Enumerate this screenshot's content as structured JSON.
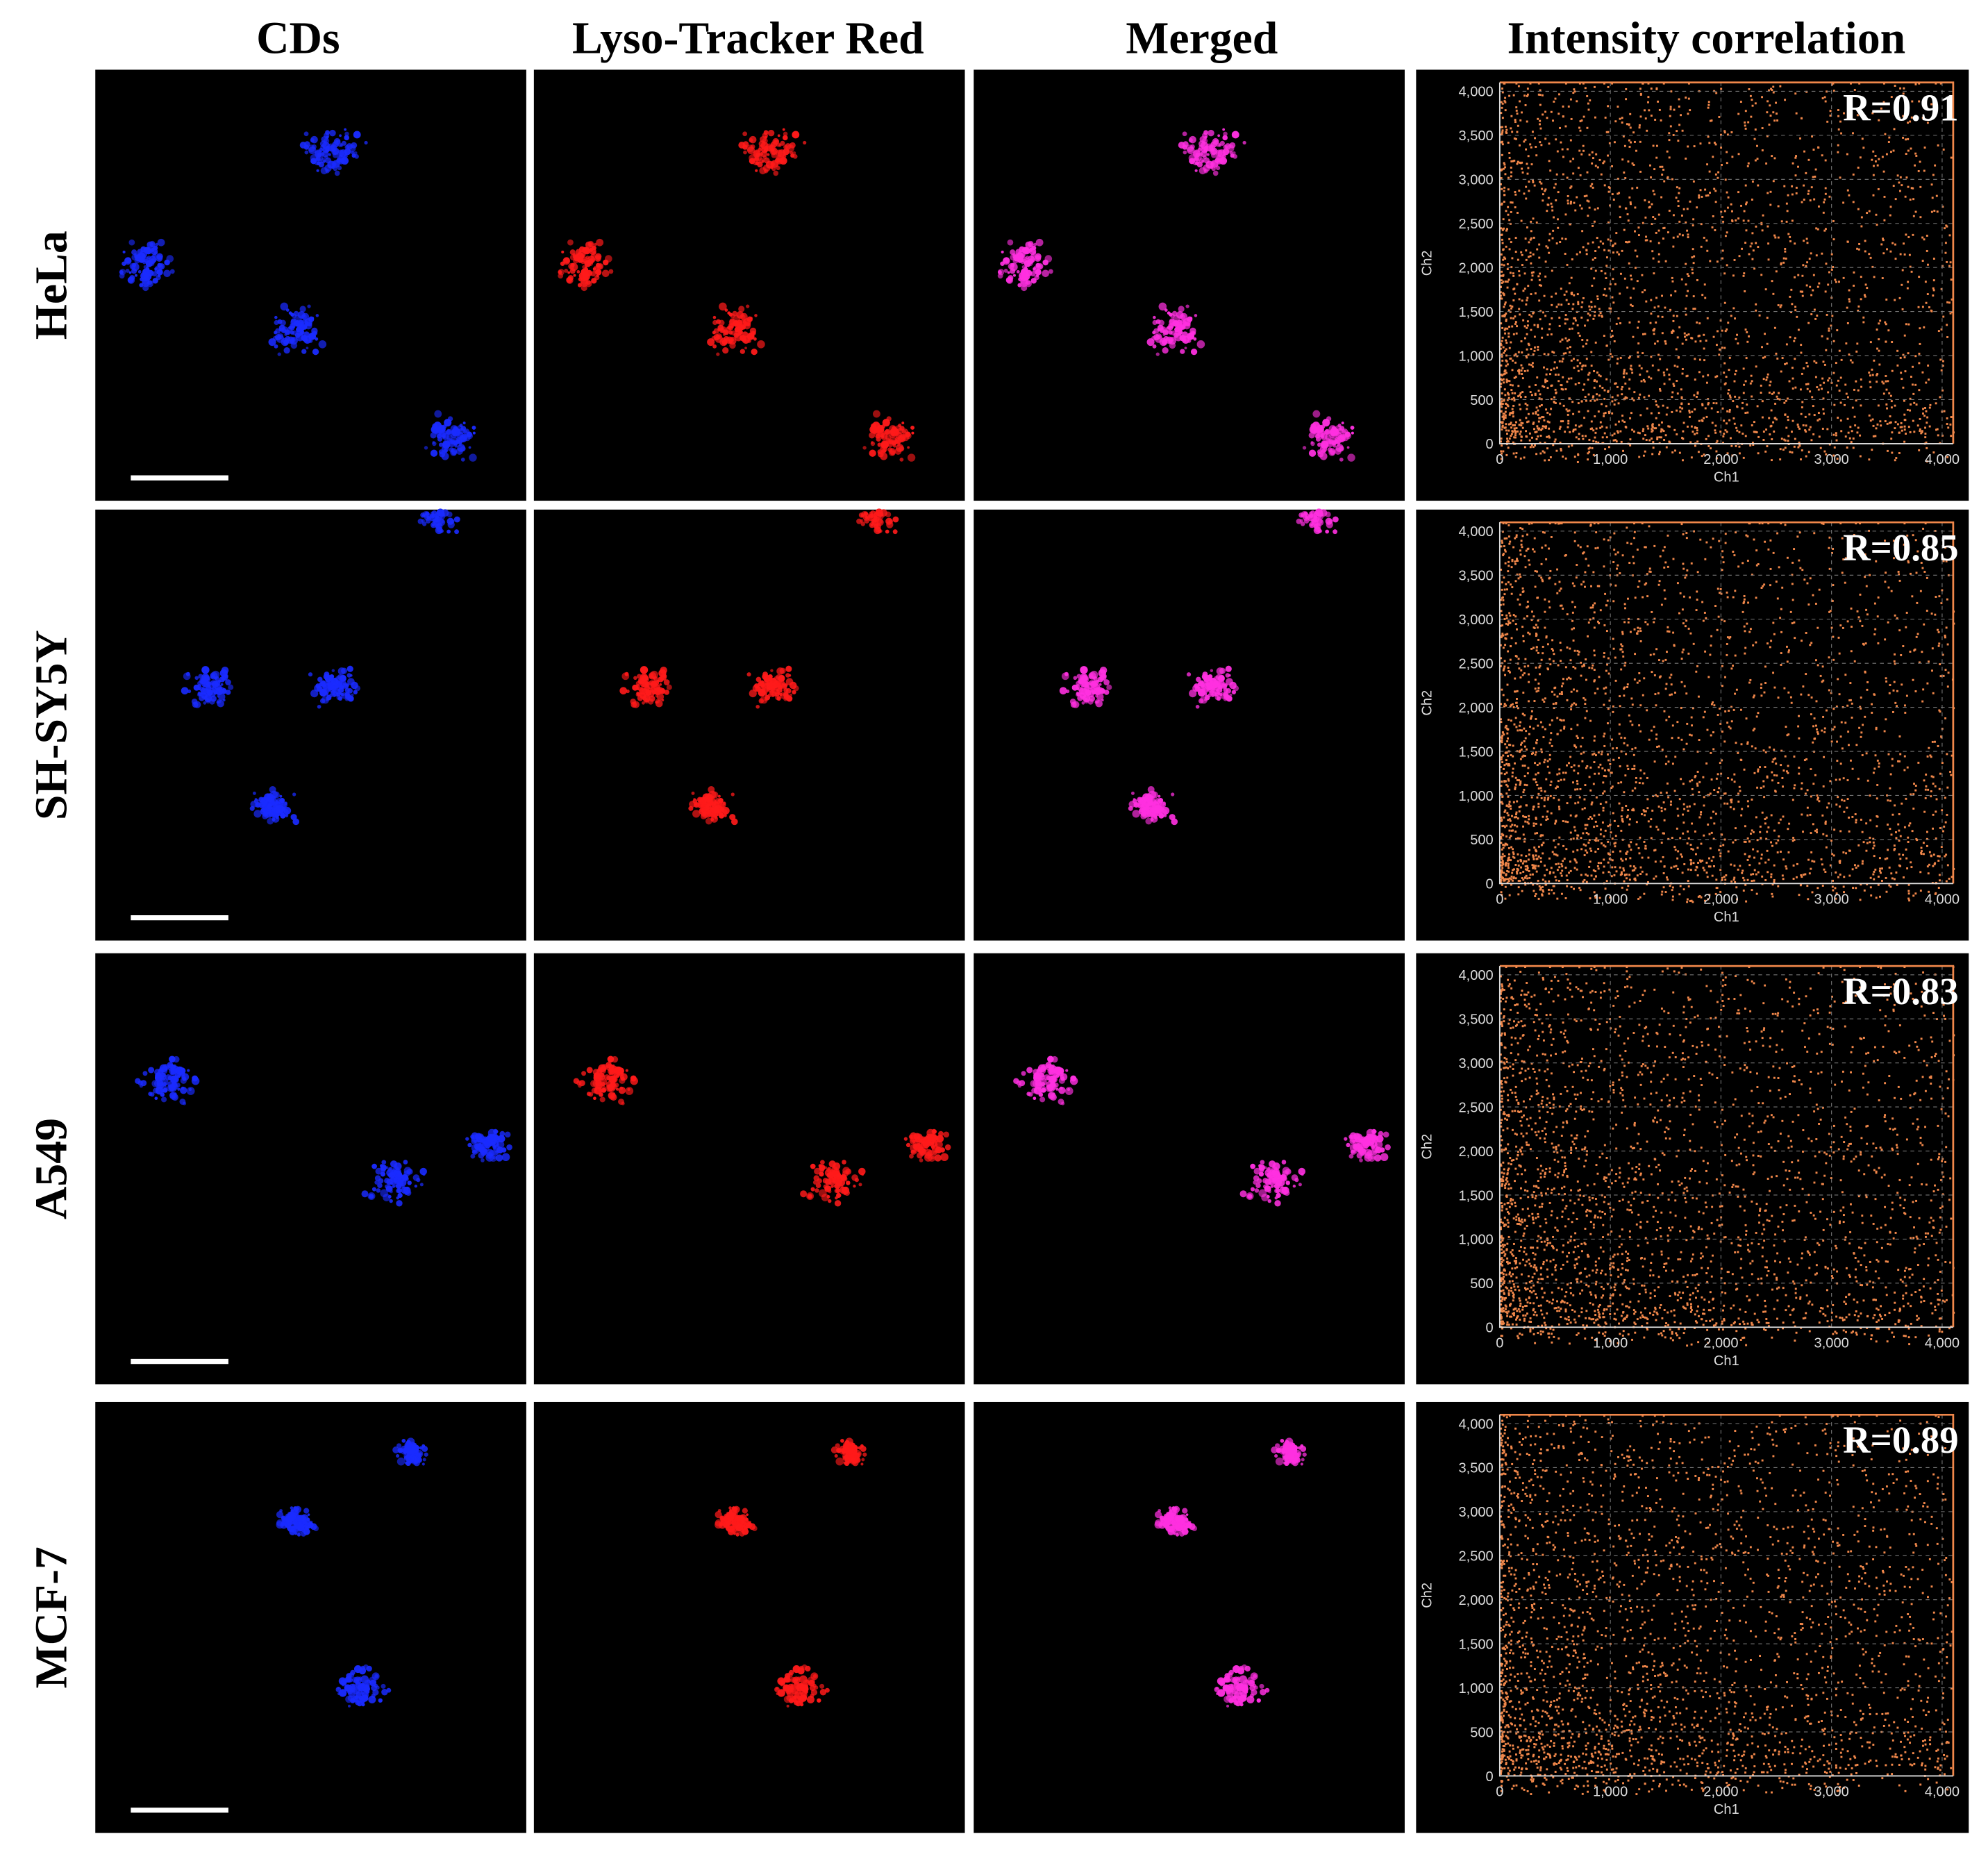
{
  "columns": [
    "CDs",
    "Lyso-Tracker Red",
    "Merged",
    "Intensity correlation"
  ],
  "rows": [
    {
      "label": "HeLa",
      "correlation": "R=0.91"
    },
    {
      "label": "SH-SY5Y",
      "correlation": "R=0.85"
    },
    {
      "label": "A549",
      "correlation": "R=0.83"
    },
    {
      "label": "MCF-7",
      "correlation": "R=0.89"
    }
  ],
  "correlation_plot": {
    "xlabel": "Ch1",
    "ylabel": "Ch2",
    "xlim": [
      0,
      4100
    ],
    "ylim": [
      0,
      4100
    ],
    "xticks": [
      0,
      {
        "value": 1000,
        "label": "1,000"
      },
      {
        "value": 2000,
        "label": "2,000"
      },
      {
        "value": 3000,
        "label": "3,000"
      },
      {
        "value": 4000,
        "label": "4,000"
      }
    ],
    "yticks": [
      0,
      500,
      {
        "value": 1000,
        "label": "1,000"
      },
      {
        "value": 1500,
        "label": "1,500"
      },
      {
        "value": 2000,
        "label": "2,000"
      },
      {
        "value": 2500,
        "label": "2,500"
      },
      {
        "value": 3000,
        "label": "3,000"
      },
      {
        "value": 3500,
        "label": "3,500"
      },
      {
        "value": 4000,
        "label": "4,000"
      }
    ]
  }
}
